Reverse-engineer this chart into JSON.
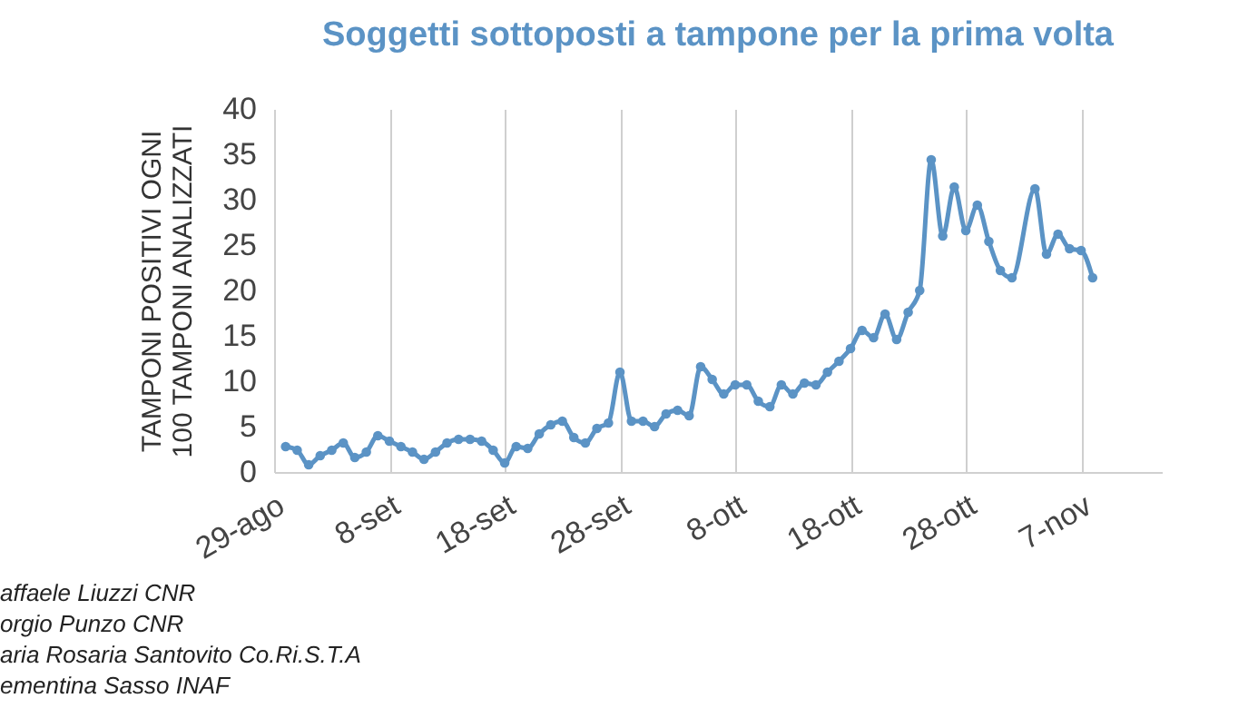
{
  "chart_data": {
    "type": "line",
    "title": "Soggetti sottoposti a tampone per la prima volta",
    "ylabel": "TAMPONI POSITIVI OGNI\n100 TAMPONI ANALIZZATI",
    "x": [
      "--08-30",
      "--08-31",
      "--09-01",
      "--09-02",
      "--09-03",
      "--09-04",
      "--09-05",
      "--09-06",
      "--09-07",
      "--09-08",
      "--09-09",
      "--09-10",
      "--09-11",
      "--09-12",
      "--09-13",
      "--09-14",
      "--09-15",
      "--09-16",
      "--09-17",
      "--09-18",
      "--09-19",
      "--09-20",
      "--09-21",
      "--09-22",
      "--09-23",
      "--09-24",
      "--09-25",
      "--09-26",
      "--09-27",
      "--09-28",
      "--09-29",
      "--09-30",
      "--10-01",
      "--10-02",
      "--10-03",
      "--10-04",
      "--10-05",
      "--10-06",
      "--10-07",
      "--10-08",
      "--10-09",
      "--10-10",
      "--10-11",
      "--10-12",
      "--10-13",
      "--10-14",
      "--10-15",
      "--10-16",
      "--10-17",
      "--10-18",
      "--10-19",
      "--10-20",
      "--10-21",
      "--10-22",
      "--10-23",
      "--10-24",
      "--10-25",
      "--10-26",
      "--10-27",
      "--10-28",
      "--10-29",
      "--10-30",
      "--10-31",
      "--11-01",
      "--11-03",
      "--11-04",
      "--11-05",
      "--11-06",
      "--11-07",
      "--11-08"
    ],
    "series": [
      {
        "color": "#5b93c5",
        "values": [
          2.8,
          2.4,
          0.8,
          1.8,
          2.4,
          3.2,
          1.6,
          2.2,
          4.0,
          3.4,
          2.8,
          2.2,
          1.4,
          2.2,
          3.2,
          3.6,
          3.6,
          3.4,
          2.4,
          1.0,
          2.8,
          2.6,
          4.2,
          5.2,
          5.6,
          3.8,
          3.2,
          4.8,
          5.4,
          11.0,
          5.6,
          5.6,
          5.0,
          6.4,
          6.8,
          6.2,
          11.6,
          10.2,
          8.6,
          9.6,
          9.6,
          7.8,
          7.2,
          9.6,
          8.6,
          9.8,
          9.6,
          11.0,
          12.2,
          13.6,
          15.6,
          14.8,
          17.4,
          14.6,
          17.6,
          20.0,
          34.4,
          26.0,
          31.4,
          26.6,
          29.4,
          25.4,
          22.2,
          21.4,
          31.2,
          24.0,
          26.2,
          24.6,
          24.4,
          21.4
        ]
      }
    ],
    "xlim": [
      "--08-29",
      "--11-14"
    ],
    "xticks": [
      {
        "value": "--08-29",
        "label": "29-ago"
      },
      {
        "value": "--09-08",
        "label": "8-set"
      },
      {
        "value": "--09-18",
        "label": "18-set"
      },
      {
        "value": "--09-28",
        "label": "28-set"
      },
      {
        "value": "--10-08",
        "label": "8-ott"
      },
      {
        "value": "--10-18",
        "label": "18-ott"
      },
      {
        "value": "--10-28",
        "label": "28-ott"
      },
      {
        "value": "--11-07",
        "label": "7-nov"
      }
    ],
    "ylim": [
      0,
      40
    ],
    "yticks": [
      0,
      5,
      10,
      15,
      20,
      25,
      30,
      35,
      40
    ],
    "grid": "x",
    "marker": "circle",
    "line_style": "solid",
    "annotations": [
      "affaele Liuzzi CNR",
      "orgio Punzo CNR",
      "aria Rosaria Santovito Co.Ri.S.T.A",
      "ementina Sasso INAF"
    ]
  }
}
